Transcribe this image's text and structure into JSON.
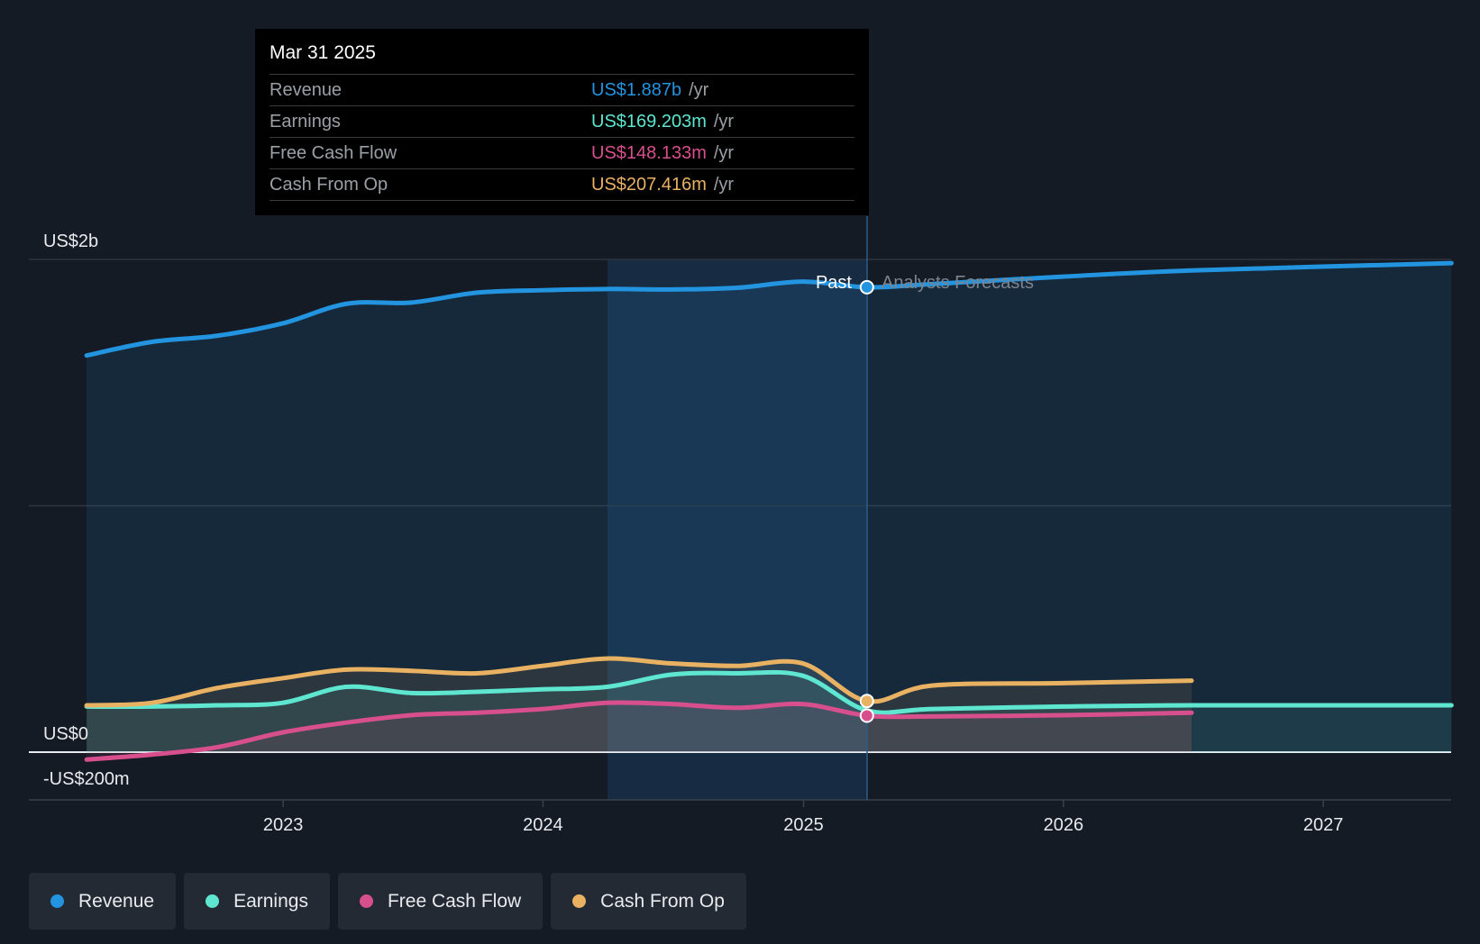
{
  "chart_data": {
    "type": "line",
    "y_axis": {
      "ticks": [
        "US$2b",
        "US$0",
        "-US$200m"
      ],
      "ylim_millions": [
        -200,
        2000
      ]
    },
    "x_axis": {
      "ticks": [
        "2023",
        "2024",
        "2025",
        "2026",
        "2027"
      ]
    },
    "divider": {
      "past_label": "Past",
      "forecast_label": "Analysts Forecasts"
    },
    "series": [
      {
        "name": "Revenue",
        "color": "#2394df",
        "points": [
          [
            "2022-03-31",
            1610
          ],
          [
            "2022-06-30",
            1665
          ],
          [
            "2022-09-30",
            1690
          ],
          [
            "2022-12-31",
            1740
          ],
          [
            "2023-03-31",
            1820
          ],
          [
            "2023-06-30",
            1825
          ],
          [
            "2023-09-30",
            1865
          ],
          [
            "2023-12-31",
            1875
          ],
          [
            "2024-03-31",
            1880
          ],
          [
            "2024-06-30",
            1878
          ],
          [
            "2024-09-30",
            1885
          ],
          [
            "2024-12-31",
            1910
          ],
          [
            "2025-03-31",
            1887
          ],
          [
            "2025-06-30",
            1900
          ],
          [
            "2025-12-31",
            1930
          ],
          [
            "2026-06-30",
            1955
          ],
          [
            "2027-06-30",
            1985
          ]
        ]
      },
      {
        "name": "Earnings",
        "color": "#5ee6d0",
        "points": [
          [
            "2022-03-31",
            185
          ],
          [
            "2022-06-30",
            185
          ],
          [
            "2022-09-30",
            190
          ],
          [
            "2022-12-31",
            200
          ],
          [
            "2023-03-31",
            265
          ],
          [
            "2023-06-30",
            240
          ],
          [
            "2023-09-30",
            245
          ],
          [
            "2023-12-31",
            255
          ],
          [
            "2024-03-31",
            265
          ],
          [
            "2024-06-30",
            315
          ],
          [
            "2024-09-30",
            320
          ],
          [
            "2024-12-31",
            310
          ],
          [
            "2025-03-31",
            169.203
          ],
          [
            "2025-06-30",
            175
          ],
          [
            "2025-12-31",
            185
          ],
          [
            "2026-06-30",
            190
          ],
          [
            "2027-06-30",
            190
          ]
        ]
      },
      {
        "name": "Free Cash Flow",
        "color": "#d84f8e",
        "points": [
          [
            "2022-03-31",
            -30
          ],
          [
            "2022-06-30",
            -10
          ],
          [
            "2022-09-30",
            20
          ],
          [
            "2022-12-31",
            80
          ],
          [
            "2023-03-31",
            120
          ],
          [
            "2023-06-30",
            150
          ],
          [
            "2023-09-30",
            160
          ],
          [
            "2023-12-31",
            175
          ],
          [
            "2024-03-31",
            200
          ],
          [
            "2024-06-30",
            195
          ],
          [
            "2024-09-30",
            180
          ],
          [
            "2024-12-31",
            195
          ],
          [
            "2025-03-31",
            148.133
          ],
          [
            "2025-06-30",
            145
          ],
          [
            "2025-12-31",
            150
          ],
          [
            "2026-06-30",
            160
          ]
        ]
      },
      {
        "name": "Cash From Op",
        "color": "#e9b263",
        "points": [
          [
            "2022-03-31",
            190
          ],
          [
            "2022-06-30",
            200
          ],
          [
            "2022-09-30",
            260
          ],
          [
            "2022-12-31",
            300
          ],
          [
            "2023-03-31",
            335
          ],
          [
            "2023-06-30",
            330
          ],
          [
            "2023-09-30",
            320
          ],
          [
            "2023-12-31",
            350
          ],
          [
            "2024-03-31",
            380
          ],
          [
            "2024-06-30",
            360
          ],
          [
            "2024-09-30",
            350
          ],
          [
            "2024-12-31",
            360
          ],
          [
            "2025-03-31",
            207.416
          ],
          [
            "2025-06-30",
            270
          ],
          [
            "2025-12-31",
            280
          ],
          [
            "2026-06-30",
            290
          ]
        ]
      }
    ]
  },
  "tooltip": {
    "date": "Mar 31 2025",
    "unit": "/yr",
    "rows": [
      {
        "label": "Revenue",
        "value": "US$1.887b",
        "color": "#2394df"
      },
      {
        "label": "Earnings",
        "value": "US$169.203m",
        "color": "#5ee6d0"
      },
      {
        "label": "Free Cash Flow",
        "value": "US$148.133m",
        "color": "#d84f8e"
      },
      {
        "label": "Cash From Op",
        "value": "US$207.416m",
        "color": "#e9b263"
      }
    ]
  },
  "legend": [
    {
      "label": "Revenue",
      "color": "#2394df"
    },
    {
      "label": "Earnings",
      "color": "#5ee6d0"
    },
    {
      "label": "Free Cash Flow",
      "color": "#d84f8e"
    },
    {
      "label": "Cash From Op",
      "color": "#e9b263"
    }
  ]
}
